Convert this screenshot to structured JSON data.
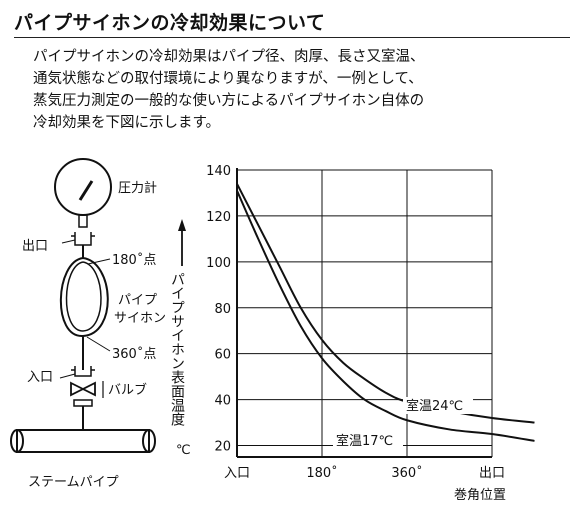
{
  "title": "パイプサイホンの冷却効果について",
  "paragraph": [
    "パイプサイホンの冷却効果はパイプ径、肉厚、長さ又室温、",
    "通気状態などの取付環境により異なりますが、一例として、",
    "蒸気圧力測定の一般的な使い方によるパイプサイホン自体の",
    "冷却効果を下図に示します。"
  ],
  "diagram": {
    "gauge_label": "圧力計",
    "outlet_label": "出口",
    "point_180": "180˚点",
    "siphon_label_1": "パイプ",
    "siphon_label_2": "サイホン",
    "point_360": "360˚点",
    "inlet_label": "入口",
    "valve_label": "バルブ",
    "steam_pipe_label": "ステームパイプ"
  },
  "chart_data": {
    "type": "line",
    "ylabel": "パイプサイホン表面温度",
    "yunit": "℃",
    "xlabel": "巻角位置",
    "x_categories": [
      "入口",
      "180˚",
      "360˚",
      "出口"
    ],
    "yticks": [
      20,
      40,
      60,
      80,
      100,
      120,
      140
    ],
    "ylim": [
      15,
      140
    ],
    "grid": true,
    "series": [
      {
        "name": "室温24℃",
        "points": [
          [
            0,
            134
          ],
          [
            0.25,
            116
          ],
          [
            0.5,
            98
          ],
          [
            0.75,
            80
          ],
          [
            1,
            66
          ],
          [
            1.25,
            56
          ],
          [
            1.5,
            49
          ],
          [
            1.75,
            43
          ],
          [
            2,
            39
          ],
          [
            2.5,
            35
          ],
          [
            3,
            32
          ],
          [
            3.5,
            30
          ]
        ]
      },
      {
        "name": "室温17℃",
        "points": [
          [
            0,
            131
          ],
          [
            0.25,
            110
          ],
          [
            0.5,
            90
          ],
          [
            0.75,
            72
          ],
          [
            1,
            58
          ],
          [
            1.25,
            48
          ],
          [
            1.5,
            40
          ],
          [
            1.75,
            35
          ],
          [
            2,
            31
          ],
          [
            2.5,
            27
          ],
          [
            3,
            25
          ],
          [
            3.5,
            22
          ]
        ]
      }
    ]
  }
}
